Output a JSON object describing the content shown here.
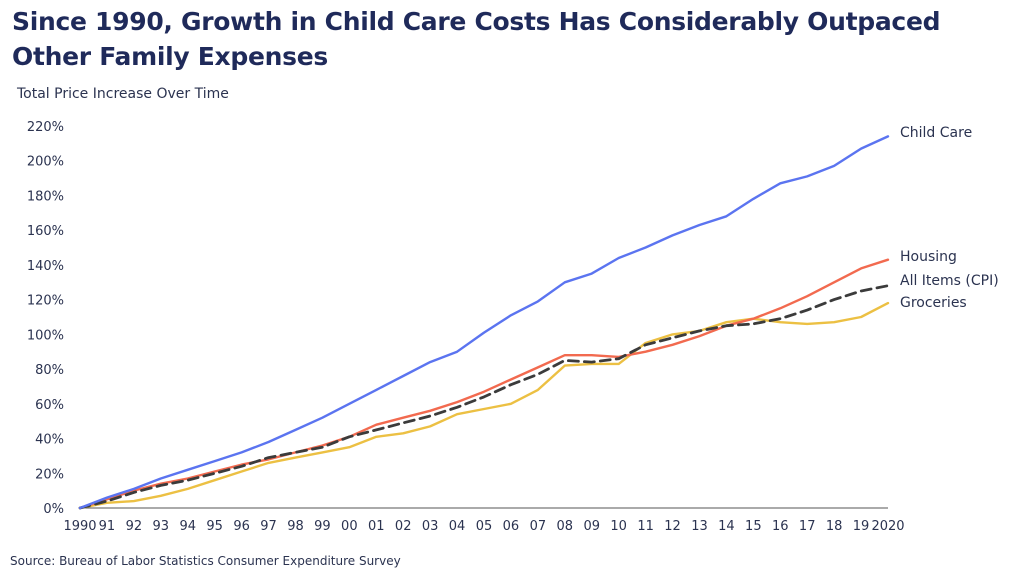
{
  "title": "Since 1990, Growth in Child Care Costs Has Considerably Outpaced Other Family Expenses",
  "subtitle": "Total Price Increase Over Time",
  "source": "Source: Bureau of Labor Statistics Consumer Expenditure Survey",
  "chart_data": {
    "type": "line",
    "title": "Since 1990, Growth in Child Care Costs Has Considerably Outpaced Other Family Expenses",
    "ylabel": "Total Price Increase Over Time",
    "xlabel": "",
    "ylim": [
      0,
      220
    ],
    "yticks": [
      0,
      20,
      40,
      60,
      80,
      100,
      120,
      140,
      160,
      180,
      200,
      220
    ],
    "ytick_labels": [
      "0%",
      "20%",
      "40%",
      "60%",
      "80%",
      "100%",
      "120%",
      "140%",
      "160%",
      "180%",
      "200%",
      "220%"
    ],
    "x": [
      1990,
      1991,
      1992,
      1993,
      1994,
      1995,
      1996,
      1997,
      1998,
      1999,
      2000,
      2001,
      2002,
      2003,
      2004,
      2005,
      2006,
      2007,
      2008,
      2009,
      2010,
      2011,
      2012,
      2013,
      2014,
      2015,
      2016,
      2017,
      2018,
      2019,
      2020
    ],
    "xtick_labels": [
      "1990",
      "91",
      "92",
      "93",
      "94",
      "95",
      "96",
      "97",
      "98",
      "99",
      "00",
      "01",
      "02",
      "03",
      "04",
      "05",
      "06",
      "07",
      "08",
      "09",
      "10",
      "11",
      "12",
      "13",
      "14",
      "15",
      "16",
      "17",
      "18",
      "19",
      "2020"
    ],
    "grid": false,
    "legend": "direct labels at right end of lines",
    "series": [
      {
        "name": "Child Care",
        "color": "#5b74f0",
        "dash": false,
        "values": [
          0,
          6,
          11,
          17,
          22,
          27,
          32,
          38,
          45,
          52,
          60,
          68,
          76,
          84,
          90,
          101,
          111,
          119,
          130,
          135,
          144,
          150,
          157,
          163,
          168,
          178,
          187,
          191,
          197,
          207,
          214
        ]
      },
      {
        "name": "Housing",
        "color": "#f26a4f",
        "dash": false,
        "values": [
          0,
          5,
          10,
          14,
          17,
          21,
          25,
          28,
          32,
          36,
          41,
          48,
          52,
          56,
          61,
          67,
          74,
          81,
          88,
          88,
          87,
          90,
          94,
          99,
          105,
          109,
          115,
          122,
          130,
          138,
          143
        ]
      },
      {
        "name": "All Items (CPI)",
        "color": "#3b3b3b",
        "dash": true,
        "values": [
          0,
          4,
          9,
          13,
          16,
          20,
          24,
          29,
          32,
          35,
          41,
          45,
          49,
          53,
          58,
          64,
          71,
          77,
          85,
          84,
          86,
          94,
          98,
          102,
          105,
          106,
          109,
          114,
          120,
          125,
          128
        ]
      },
      {
        "name": "Groceries",
        "color": "#ecc043",
        "dash": false,
        "values": [
          0,
          3,
          4,
          7,
          11,
          16,
          21,
          26,
          29,
          32,
          35,
          41,
          43,
          47,
          54,
          57,
          60,
          68,
          82,
          83,
          83,
          95,
          100,
          102,
          107,
          109,
          107,
          106,
          107,
          110,
          118
        ]
      }
    ]
  }
}
